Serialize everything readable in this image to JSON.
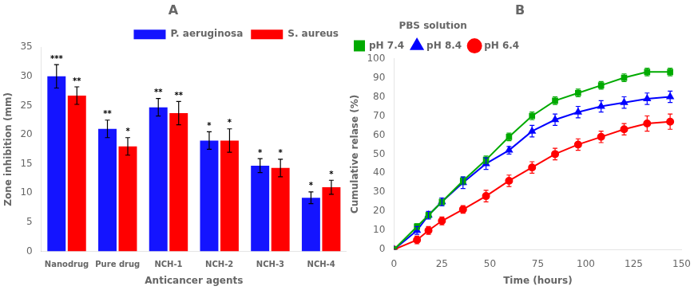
{
  "chart_data": [
    {
      "type": "bar",
      "title": "A",
      "xlabel": "Anticancer agents",
      "ylabel": "Zone inhibition (mm)",
      "categories": [
        "Nanodrug",
        "Pure drug",
        "NCH-1",
        "NCH-2",
        "NCH-3",
        "NCH-4"
      ],
      "series": [
        {
          "name": "P. aeruginosa",
          "color": "#1414FF",
          "values": [
            30.0,
            21.0,
            24.7,
            19.0,
            14.7,
            9.2
          ],
          "errors": [
            2.0,
            1.5,
            1.5,
            1.5,
            1.2,
            1.0
          ],
          "annotations": [
            "***",
            "**",
            "**",
            "*",
            "*",
            "*"
          ]
        },
        {
          "name": "S. aureus",
          "color": "#FF0000",
          "values": [
            26.7,
            18.0,
            23.7,
            19.0,
            14.3,
            11.0
          ],
          "errors": [
            1.5,
            1.5,
            2.0,
            2.0,
            1.5,
            1.2
          ],
          "annotations": [
            "**",
            "*",
            "**",
            "*",
            "*",
            "*"
          ]
        }
      ],
      "ylim": [
        0,
        35
      ],
      "yticks": [
        0,
        5,
        10,
        15,
        20,
        25,
        30,
        35
      ],
      "grid": false,
      "legend": "upper right"
    },
    {
      "type": "line",
      "title": "B",
      "xlabel": "Time (hours)",
      "ylabel": "Cumulative relase (%)",
      "legend_title": "PBS solution",
      "x": [
        0,
        12,
        18,
        25,
        36,
        48,
        60,
        72,
        84,
        96,
        108,
        120,
        132,
        144
      ],
      "series": [
        {
          "name": "pH 7.4",
          "color": "#00AA00",
          "marker": "square",
          "line_style": "solid",
          "values": [
            0,
            12,
            18,
            25,
            36,
            47,
            59,
            70,
            78,
            82,
            86,
            90,
            93,
            93
          ],
          "errors": [
            0,
            1.5,
            1.5,
            2,
            2,
            2,
            2,
            2,
            2,
            2,
            2,
            2,
            2,
            2
          ]
        },
        {
          "name": "pH 8.4",
          "color": "#0000FF",
          "marker": "triangle",
          "line_style": "solid",
          "values": [
            0,
            10,
            18,
            25,
            35,
            45,
            52,
            62,
            68,
            72,
            75,
            77,
            79,
            80
          ],
          "errors": [
            0,
            2,
            2,
            2,
            3,
            3,
            2,
            3,
            3,
            3,
            3,
            3,
            3,
            3
          ]
        },
        {
          "name": "pH 6.4",
          "color": "#FF0000",
          "marker": "circle",
          "line_style": "solid",
          "values": [
            0,
            5,
            10,
            15,
            21,
            28,
            36,
            43,
            50,
            55,
            59,
            63,
            66,
            67
          ],
          "errors": [
            0,
            2,
            2,
            2,
            2,
            3,
            3,
            3,
            3,
            3,
            3,
            3,
            4,
            4
          ]
        }
      ],
      "xlim": [
        0,
        150
      ],
      "xticks": [
        0,
        25,
        50,
        75,
        100,
        125,
        150
      ],
      "ylim": [
        0,
        100
      ],
      "yticks": [
        0,
        10,
        20,
        30,
        40,
        50,
        60,
        70,
        80,
        90,
        100
      ],
      "grid": false,
      "legend": "upper left"
    }
  ]
}
